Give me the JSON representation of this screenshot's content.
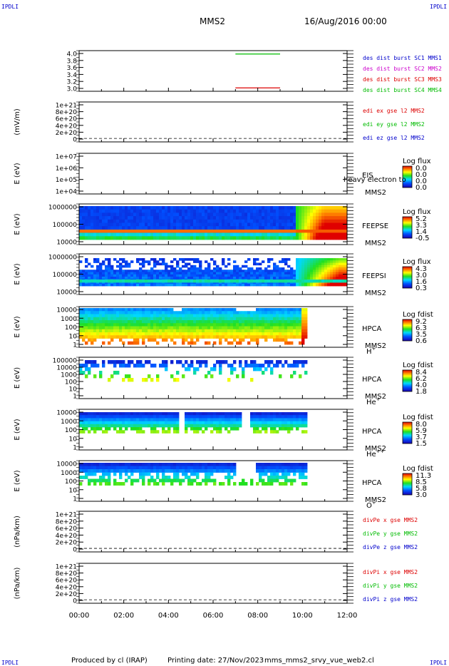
{
  "header": {
    "corner_tl": "IPDLI",
    "corner_tr": "IPDLI",
    "corner_bl": "IPDLI",
    "corner_br": "IPDLI",
    "mission": "MMS2",
    "date": "16/Aug/2016 00:00"
  },
  "footer": {
    "produced": "Produced by cl (IRAP)",
    "printing": "Printing date: 27/Nov/2023",
    "script": "mms_mms2_srvy_vue_web2.cl"
  },
  "x_axis": {
    "ticks": [
      "00:00",
      "02:00",
      "04:00",
      "06:00",
      "08:00",
      "10:00",
      "12:00"
    ],
    "range_hours": [
      0,
      12
    ]
  },
  "chart_data": [
    {
      "id": "p1",
      "type": "line",
      "ylabel": "",
      "ytick_labels": [
        "4.0",
        "3.8",
        "3.6",
        "3.4",
        "3.2",
        "3.0"
      ],
      "ylim": [
        2.9,
        4.1
      ],
      "legend": [
        {
          "text": "des dist burst SC1 MMS1",
          "color": "#0000cc"
        },
        {
          "text": "des dist burst SC2 MMS2",
          "color": "#cc00cc"
        },
        {
          "text": "des dist burst SC3 MMS3",
          "color": "#dd0000"
        },
        {
          "text": "des dist burst SC4 MMS4",
          "color": "#00bb00"
        }
      ],
      "series": [
        {
          "name": "des dist burst SC4 MMS4",
          "color": "#00bb00",
          "x": [
            7.0,
            9.0
          ],
          "y": [
            4.0,
            4.0
          ]
        },
        {
          "name": "des dist burst SC3 MMS3",
          "color": "#dd0000",
          "x": [
            7.0,
            9.0
          ],
          "y": [
            3.0,
            3.0
          ]
        }
      ]
    },
    {
      "id": "p2",
      "type": "line",
      "ylabel": "(mV/m)",
      "ytick_labels": [
        "1e+21",
        "8e+20",
        "6e+20",
        "4e+20",
        "2e+20",
        "0"
      ],
      "ylim": [
        -1e+20,
        1.05e+21
      ],
      "zero_dashed": true,
      "legend": [
        {
          "text": "edi ex gse l2 MMS2",
          "color": "#dd0000"
        },
        {
          "text": "edi ey gse l2 MMS2",
          "color": "#00bb00"
        },
        {
          "text": "edi ez gse l2 MMS2",
          "color": "#0000cc"
        }
      ]
    },
    {
      "id": "p3",
      "type": "heatmap",
      "ylabel": "E (eV)",
      "ytick_labels": [
        "1e+07",
        "1e+06",
        "1e+05",
        "1e+04"
      ],
      "labels": [
        "EIS",
        "MMS2"
      ],
      "overlay_text": "heavy electron to",
      "colorbar": {
        "title": "Log flux",
        "ticks": [
          "0.0",
          "0.0",
          "0.0",
          "0.0"
        ]
      }
    },
    {
      "id": "p4",
      "type": "heatmap",
      "ylabel": "E (eV)",
      "ytick_labels": [
        "1000000",
        "100000",
        "10000"
      ],
      "labels": [
        "FEEPSE",
        "MMS2"
      ],
      "colorbar": {
        "title": "Log flux",
        "ticks": [
          "5.2",
          "3.3",
          "1.4",
          "-0.5"
        ]
      }
    },
    {
      "id": "p5",
      "type": "heatmap",
      "ylabel": "E (eV)",
      "ytick_labels": [
        "1000000",
        "100000",
        "10000"
      ],
      "labels": [
        "FEEPSI",
        "MMS2"
      ],
      "colorbar": {
        "title": "Log flux",
        "ticks": [
          "4.3",
          "3.0",
          "1.6",
          "0.3"
        ]
      }
    },
    {
      "id": "p6",
      "type": "heatmap",
      "ylabel": "E (eV)",
      "ytick_labels": [
        "10000",
        "1000",
        "100",
        "10",
        "1"
      ],
      "labels": [
        "HPCA",
        "MMS2"
      ],
      "species": {
        "base": "H",
        "sup": "+"
      },
      "colorbar": {
        "title": "Log fdist",
        "ticks": [
          "9.2",
          "6.3",
          "3.5",
          "0.6"
        ]
      }
    },
    {
      "id": "p7",
      "type": "heatmap",
      "ylabel": "E (eV)",
      "ytick_labels": [
        "100000",
        "10000",
        "1000",
        "100",
        "10",
        "1"
      ],
      "labels": [
        "HPCA",
        "MMS2"
      ],
      "species": {
        "base": "He",
        "sup": "+"
      },
      "colorbar": {
        "title": "Log fdist",
        "ticks": [
          "8.4",
          "6.2",
          "4.0",
          "1.8"
        ]
      }
    },
    {
      "id": "p8",
      "type": "heatmap",
      "ylabel": "E (eV)",
      "ytick_labels": [
        "10000",
        "1000",
        "100",
        "10",
        "1"
      ],
      "labels": [
        "HPCA",
        "MMS2"
      ],
      "species": {
        "base": "He",
        "sup": "++"
      },
      "colorbar": {
        "title": "Log fdist",
        "ticks": [
          "8.0",
          "5.9",
          "3.7",
          "1.5"
        ]
      }
    },
    {
      "id": "p9",
      "type": "heatmap",
      "ylabel": "E (eV)",
      "ytick_labels": [
        "10000",
        "1000",
        "100",
        "10",
        "1"
      ],
      "labels": [
        "HPCA",
        "MMS2"
      ],
      "species": {
        "base": "O",
        "sup": "+"
      },
      "colorbar": {
        "title": "Log fdist",
        "ticks": [
          "11.3",
          "8.5",
          "5.8",
          "3.0"
        ]
      }
    },
    {
      "id": "p10",
      "type": "line",
      "ylabel": "(nPa/km)",
      "ytick_labels": [
        "1e+21",
        "8e+20",
        "6e+20",
        "4e+20",
        "2e+20",
        "0"
      ],
      "ylim": [
        -1e+20,
        1.05e+21
      ],
      "zero_dashed": true,
      "legend": [
        {
          "text": "divPe x gse MMS2",
          "color": "#dd0000"
        },
        {
          "text": "divPe y gse MMS2",
          "color": "#00bb00"
        },
        {
          "text": "divPe z gse MMS2",
          "color": "#0000cc"
        }
      ]
    },
    {
      "id": "p11",
      "type": "line",
      "ylabel": "(nPa/km)",
      "ytick_labels": [
        "1e+21",
        "8e+20",
        "6e+20",
        "4e+20",
        "2e+20",
        "0"
      ],
      "ylim": [
        -1e+20,
        1.05e+21
      ],
      "zero_dashed": true,
      "legend": [
        {
          "text": "divPi x gse MMS2",
          "color": "#dd0000"
        },
        {
          "text": "divPi y gse MMS2",
          "color": "#00bb00"
        },
        {
          "text": "divPi z gse MMS2",
          "color": "#0000cc"
        }
      ]
    }
  ]
}
